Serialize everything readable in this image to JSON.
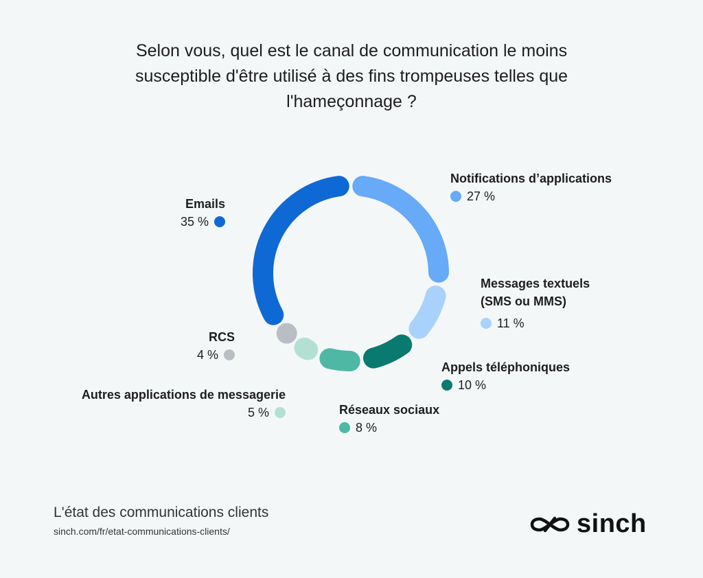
{
  "chart_data": {
    "type": "pie",
    "title": "Selon vous, quel est le canal de communication le moins susceptible d'être utilisé à des fins trompeuses telles que l'hameçonnage ?",
    "title_lines": [
      "Selon vous, quel est le canal de communication le moins",
      "susceptible d'être utilisé à des fins trompeuses telles que",
      "l'hameçonnage ?"
    ],
    "slices": [
      {
        "name": "Notifications d’applications",
        "name_lines": [
          "Notifications d’applications"
        ],
        "value": 27,
        "label": "27 %",
        "color": "#66aaf8"
      },
      {
        "name": "Messages textuels (SMS ou MMS)",
        "name_lines": [
          "Messages textuels",
          "(SMS ou MMS)"
        ],
        "value": 11,
        "label": "11 %",
        "color": "#a8d2fb"
      },
      {
        "name": "Appels téléphoniques",
        "name_lines": [
          "Appels téléphoniques"
        ],
        "value": 10,
        "label": "10 %",
        "color": "#087a70"
      },
      {
        "name": "Réseaux sociaux",
        "name_lines": [
          "Réseaux sociaux"
        ],
        "value": 8,
        "label": "8 %",
        "color": "#4fb8a5"
      },
      {
        "name": "Autres applications de messagerie",
        "name_lines": [
          "Autres applications de messagerie"
        ],
        "value": 5,
        "label": "5 %",
        "color": "#b3e0d3"
      },
      {
        "name": "RCS",
        "name_lines": [
          "RCS"
        ],
        "value": 4,
        "label": "4 %",
        "color": "#b8bec4"
      },
      {
        "name": "Emails",
        "name_lines": [
          "Emails"
        ],
        "value": 35,
        "label": "35 %",
        "color": "#0f69d4"
      }
    ],
    "style": "donut"
  },
  "footer": {
    "title": "L'état des communications clients",
    "url": "sinch.com/fr/etat-communications-clients/"
  },
  "logo": {
    "text": "sinch",
    "icon": "sinch-logo-icon"
  }
}
